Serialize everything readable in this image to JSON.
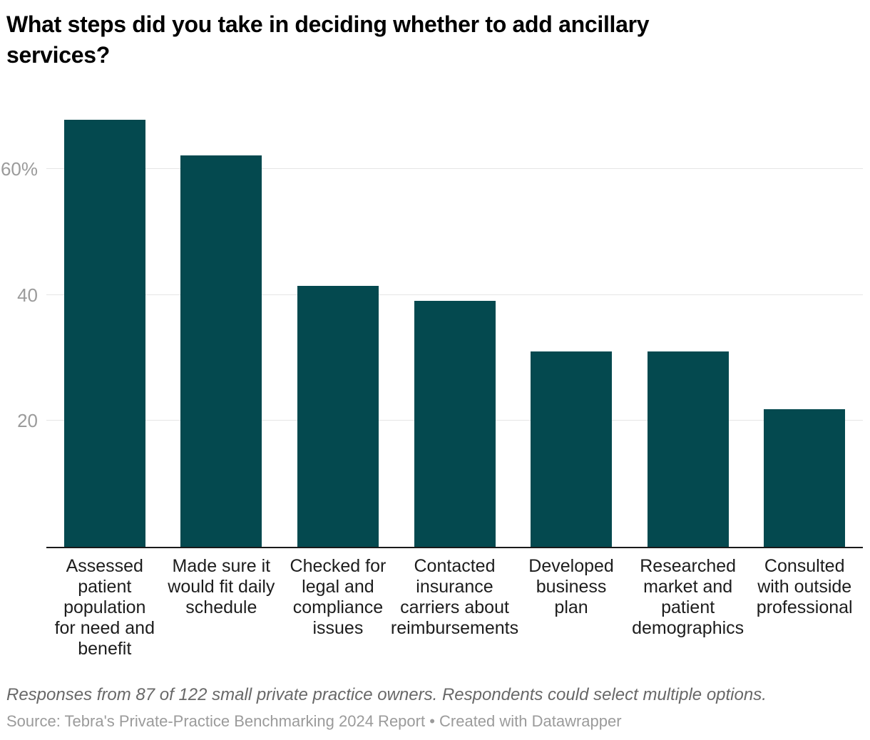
{
  "title": "What steps did you take in deciding whether to add ancillary\nservices?",
  "chart_data": {
    "type": "bar",
    "title": "What steps did you take in deciding whether to add ancillary services?",
    "categories": [
      "Assessed patient population for need and benefit",
      "Made sure it would fit daily schedule",
      "Checked for legal and compliance issues",
      "Contacted insurance carriers about reimbursements",
      "Developed business plan",
      "Researched market and patient demographics",
      "Consulted with outside professional"
    ],
    "category_lines": [
      [
        "Assessed",
        "patient",
        "population",
        "for need and",
        "benefit"
      ],
      [
        "Made sure it",
        "would fit daily",
        "schedule"
      ],
      [
        "Checked for",
        "legal and",
        "compliance",
        "issues"
      ],
      [
        "Contacted",
        "insurance",
        "carriers about",
        "reimbursements"
      ],
      [
        "Developed",
        "business",
        "plan"
      ],
      [
        "Researched",
        "market and",
        "patient",
        "demographics"
      ],
      [
        "Consulted",
        "with outside",
        "professional"
      ]
    ],
    "values": [
      67.8,
      62.1,
      41.4,
      39.1,
      31.0,
      31.0,
      21.8
    ],
    "unit": "%",
    "xlabel": "",
    "ylabel": "",
    "ylim": [
      0,
      69.85
    ],
    "yticks": [
      {
        "value": 60,
        "label": "60%"
      },
      {
        "value": 40,
        "label": "40"
      },
      {
        "value": 20,
        "label": "20"
      }
    ],
    "grid": "horizontal",
    "legend": "none",
    "bar_color": "#04494F"
  },
  "colors": {
    "bar": "#04494F",
    "gridline": "#e5e5e5",
    "axis_line": "#1a1a1a",
    "tick_label": "#9b9b9b",
    "category_label": "#1d1d1d",
    "title": "#000000",
    "notes": "#686868",
    "source": "#9b9b9b"
  },
  "footer": {
    "notes": "Responses from 87 of 122 small private practice owners. Respondents could select multiple options.",
    "source": "Source: Tebra's Private-Practice Benchmarking 2024 Report • Created with Datawrapper"
  }
}
